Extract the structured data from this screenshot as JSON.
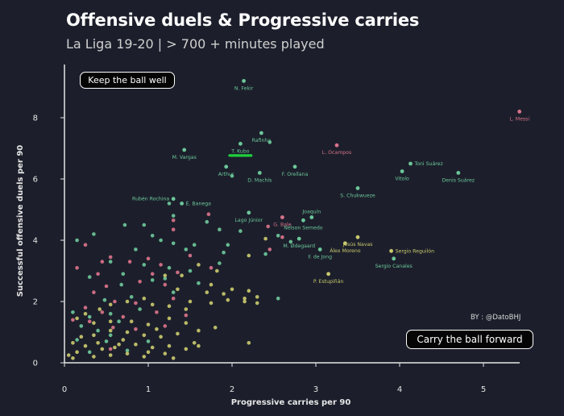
{
  "chart_data": {
    "type": "scatter",
    "title": "Offensive duels & Progressive carries",
    "subtitle": "La Liga 19-20 | > 700 + minutes played",
    "xlabel": "Progressive carries per 90",
    "ylabel": "Successful offensive duels per 90",
    "xlim": [
      0,
      5.6
    ],
    "ylim": [
      0,
      9.5
    ],
    "xticks": [
      "0",
      "1",
      "2",
      "3",
      "4",
      "5"
    ],
    "yticks": [
      "0",
      "2",
      "4",
      "6",
      "8"
    ],
    "grid": false,
    "annotations": {
      "top_left": "Keep the ball well",
      "bottom_right": "Carry the ball forward",
      "credit": "BY : @DatoBHJ"
    },
    "colors": {
      "teal": "#6cc79a",
      "pink": "#d9728a",
      "yellow": "#c9c86e",
      "highlight": "#1ed03c"
    },
    "highlight": "T. Kubo",
    "labeled_points": [
      {
        "name": "L. Messi",
        "x": 5.43,
        "y": 8.2,
        "color": "pink",
        "anchor": "below"
      },
      {
        "name": "N. Fekir",
        "x": 2.14,
        "y": 9.2,
        "color": "teal",
        "anchor": "below"
      },
      {
        "name": "Rafinha",
        "x": 2.35,
        "y": 7.5,
        "color": "teal",
        "anchor": "below"
      },
      {
        "name": "T. Kubo",
        "x": 2.1,
        "y": 7.15,
        "color": "teal",
        "anchor": "below"
      },
      {
        "name": "M. Vargas",
        "x": 1.43,
        "y": 6.95,
        "color": "teal",
        "anchor": "belowleft"
      },
      {
        "name": "L. Ocampos",
        "x": 3.25,
        "y": 7.1,
        "color": "pink",
        "anchor": "below"
      },
      {
        "name": "Toni Suárez",
        "x": 4.13,
        "y": 6.5,
        "color": "teal",
        "anchor": "right"
      },
      {
        "name": "Vitolo",
        "x": 4.03,
        "y": 6.25,
        "color": "teal",
        "anchor": "below"
      },
      {
        "name": "Denis Suárez",
        "x": 4.7,
        "y": 6.2,
        "color": "teal",
        "anchor": "below"
      },
      {
        "name": "Arthur",
        "x": 1.93,
        "y": 6.4,
        "color": "teal",
        "anchor": "below"
      },
      {
        "name": "D. Machís",
        "x": 2.33,
        "y": 6.2,
        "color": "teal",
        "anchor": "below"
      },
      {
        "name": "F. Orellana",
        "x": 2.75,
        "y": 6.4,
        "color": "teal",
        "anchor": "below"
      },
      {
        "name": "S. Chukwueze",
        "x": 3.5,
        "y": 5.7,
        "color": "teal",
        "anchor": "below"
      },
      {
        "name": "Rubén Rochina",
        "x": 1.3,
        "y": 5.35,
        "color": "teal",
        "anchor": "left"
      },
      {
        "name": "É. Banega",
        "x": 1.4,
        "y": 5.2,
        "color": "teal",
        "anchor": "right"
      },
      {
        "name": "Joaquín",
        "x": 2.95,
        "y": 4.75,
        "color": "teal",
        "anchor": "above"
      },
      {
        "name": "Lago Júnior",
        "x": 2.2,
        "y": 4.9,
        "color": "teal",
        "anchor": "below"
      },
      {
        "name": "G. Bale",
        "x": 2.6,
        "y": 4.75,
        "color": "pink",
        "anchor": "below"
      },
      {
        "name": "Nélson Semedo",
        "x": 2.85,
        "y": 4.65,
        "color": "teal",
        "anchor": "below"
      },
      {
        "name": "M. Ødegaard",
        "x": 2.8,
        "y": 4.05,
        "color": "teal",
        "anchor": "below"
      },
      {
        "name": "Jesús Navas",
        "x": 3.5,
        "y": 4.1,
        "color": "yellow",
        "anchor": "below"
      },
      {
        "name": "Álex Moreno",
        "x": 3.35,
        "y": 3.9,
        "color": "yellow",
        "anchor": "below"
      },
      {
        "name": "Sergio Reguilón",
        "x": 3.9,
        "y": 3.65,
        "color": "yellow",
        "anchor": "right"
      },
      {
        "name": "F. de Jong",
        "x": 3.05,
        "y": 3.7,
        "color": "teal",
        "anchor": "below"
      },
      {
        "name": "Sergio Canales",
        "x": 3.93,
        "y": 3.4,
        "color": "teal",
        "anchor": "below"
      },
      {
        "name": "P. Estupiñán",
        "x": 3.15,
        "y": 2.9,
        "color": "yellow",
        "anchor": "below"
      }
    ],
    "series": [
      {
        "color": "teal",
        "points": [
          [
            2.45,
            7.2
          ],
          [
            2.0,
            6.1
          ],
          [
            1.25,
            5.2
          ],
          [
            1.3,
            4.8
          ],
          [
            1.7,
            4.6
          ],
          [
            1.85,
            4.35
          ],
          [
            2.1,
            4.3
          ],
          [
            1.05,
            4.15
          ],
          [
            0.35,
            4.2
          ],
          [
            0.72,
            4.5
          ],
          [
            0.95,
            4.5
          ],
          [
            0.15,
            4.0
          ],
          [
            1.15,
            4.0
          ],
          [
            1.3,
            3.9
          ],
          [
            0.85,
            3.7
          ],
          [
            1.55,
            3.85
          ],
          [
            2.4,
            3.55
          ],
          [
            1.45,
            3.7
          ],
          [
            1.9,
            3.6
          ],
          [
            0.55,
            3.3
          ],
          [
            0.95,
            3.2
          ],
          [
            1.25,
            3.1
          ],
          [
            1.85,
            3.25
          ],
          [
            1.5,
            3.0
          ],
          [
            0.7,
            2.9
          ],
          [
            0.3,
            2.8
          ],
          [
            1.05,
            2.7
          ],
          [
            1.6,
            2.6
          ],
          [
            2.55,
            2.1
          ],
          [
            1.3,
            2.3
          ],
          [
            0.48,
            2.05
          ],
          [
            0.8,
            2.15
          ],
          [
            0.1,
            1.65
          ],
          [
            0.3,
            1.5
          ],
          [
            0.55,
            1.6
          ],
          [
            0.65,
            1.35
          ],
          [
            0.9,
            1.75
          ],
          [
            0.2,
            1.2
          ],
          [
            0.4,
            1.05
          ],
          [
            0.15,
            0.75
          ],
          [
            0.5,
            0.7
          ],
          [
            0.75,
            0.4
          ],
          [
            0.3,
            0.35
          ],
          [
            1.0,
            0.7
          ],
          [
            0.55,
            0.9
          ],
          [
            2.55,
            4.15
          ],
          [
            2.7,
            3.95
          ],
          [
            1.95,
            3.85
          ],
          [
            0.68,
            2.55
          ],
          [
            1.2,
            2.75
          ]
        ]
      },
      {
        "color": "pink",
        "points": [
          [
            1.3,
            4.65
          ],
          [
            1.72,
            4.85
          ],
          [
            2.43,
            4.45
          ],
          [
            2.6,
            4.1
          ],
          [
            1.3,
            4.35
          ],
          [
            0.25,
            3.85
          ],
          [
            0.45,
            3.3
          ],
          [
            0.55,
            3.45
          ],
          [
            0.78,
            3.3
          ],
          [
            1.0,
            3.4
          ],
          [
            1.15,
            3.2
          ],
          [
            1.5,
            3.5
          ],
          [
            1.75,
            3.1
          ],
          [
            1.05,
            2.9
          ],
          [
            0.15,
            3.1
          ],
          [
            0.4,
            2.9
          ],
          [
            0.9,
            2.65
          ],
          [
            1.35,
            2.95
          ],
          [
            1.2,
            2.55
          ],
          [
            0.35,
            2.3
          ],
          [
            0.6,
            2.0
          ],
          [
            0.85,
            1.95
          ],
          [
            1.3,
            2.1
          ],
          [
            0.25,
            1.8
          ],
          [
            0.45,
            1.65
          ],
          [
            0.7,
            1.5
          ],
          [
            1.1,
            1.65
          ],
          [
            1.2,
            1.2
          ],
          [
            0.58,
            1.15
          ],
          [
            0.3,
            1.35
          ],
          [
            0.1,
            1.4
          ],
          [
            0.85,
            1.1
          ],
          [
            1.45,
            1.55
          ],
          [
            0.55,
            0.45
          ],
          [
            2.45,
            3.7
          ],
          [
            0.5,
            2.5
          ]
        ]
      },
      {
        "color": "yellow",
        "points": [
          [
            2.4,
            4.05
          ],
          [
            2.2,
            3.5
          ],
          [
            1.82,
            3.0
          ],
          [
            1.6,
            3.2
          ],
          [
            1.4,
            2.85
          ],
          [
            1.2,
            2.85
          ],
          [
            1.75,
            2.55
          ],
          [
            2.0,
            2.4
          ],
          [
            2.2,
            2.35
          ],
          [
            2.3,
            2.15
          ],
          [
            1.9,
            2.25
          ],
          [
            1.7,
            2.3
          ],
          [
            1.5,
            2.0
          ],
          [
            1.35,
            2.4
          ],
          [
            1.95,
            2.05
          ],
          [
            2.15,
            2.0
          ],
          [
            2.3,
            1.95
          ],
          [
            1.75,
            1.95
          ],
          [
            1.45,
            1.75
          ],
          [
            1.25,
            1.85
          ],
          [
            1.05,
            1.9
          ],
          [
            0.95,
            2.1
          ],
          [
            0.75,
            2.0
          ],
          [
            0.55,
            1.9
          ],
          [
            0.42,
            1.75
          ],
          [
            0.25,
            1.6
          ],
          [
            0.15,
            1.45
          ],
          [
            0.35,
            1.3
          ],
          [
            0.55,
            1.35
          ],
          [
            0.8,
            1.35
          ],
          [
            1.0,
            1.25
          ],
          [
            1.25,
            1.45
          ],
          [
            1.45,
            1.3
          ],
          [
            1.6,
            1.05
          ],
          [
            1.35,
            0.95
          ],
          [
            1.15,
            0.85
          ],
          [
            0.95,
            0.9
          ],
          [
            0.75,
            1.0
          ],
          [
            0.55,
            1.05
          ],
          [
            0.35,
            0.9
          ],
          [
            0.2,
            0.85
          ],
          [
            0.1,
            0.65
          ],
          [
            0.25,
            0.55
          ],
          [
            0.45,
            0.45
          ],
          [
            0.65,
            0.6
          ],
          [
            0.85,
            0.6
          ],
          [
            1.05,
            0.5
          ],
          [
            1.25,
            0.55
          ],
          [
            1.45,
            0.45
          ],
          [
            1.55,
            0.65
          ],
          [
            0.15,
            0.35
          ],
          [
            0.35,
            0.2
          ],
          [
            0.55,
            0.25
          ],
          [
            0.75,
            0.3
          ],
          [
            0.95,
            0.2
          ],
          [
            1.2,
            0.3
          ],
          [
            1.3,
            0.15
          ],
          [
            0.1,
            0.15
          ],
          [
            0.6,
            0.5
          ],
          [
            0.05,
            0.25
          ],
          [
            2.2,
            0.65
          ],
          [
            1.1,
            1.1
          ],
          [
            0.7,
            0.75
          ],
          [
            0.4,
            0.65
          ],
          [
            1.8,
            1.15
          ],
          [
            1.6,
            0.55
          ],
          [
            2.15,
            2.1
          ],
          [
            1.0,
            0.35
          ]
        ]
      }
    ]
  }
}
